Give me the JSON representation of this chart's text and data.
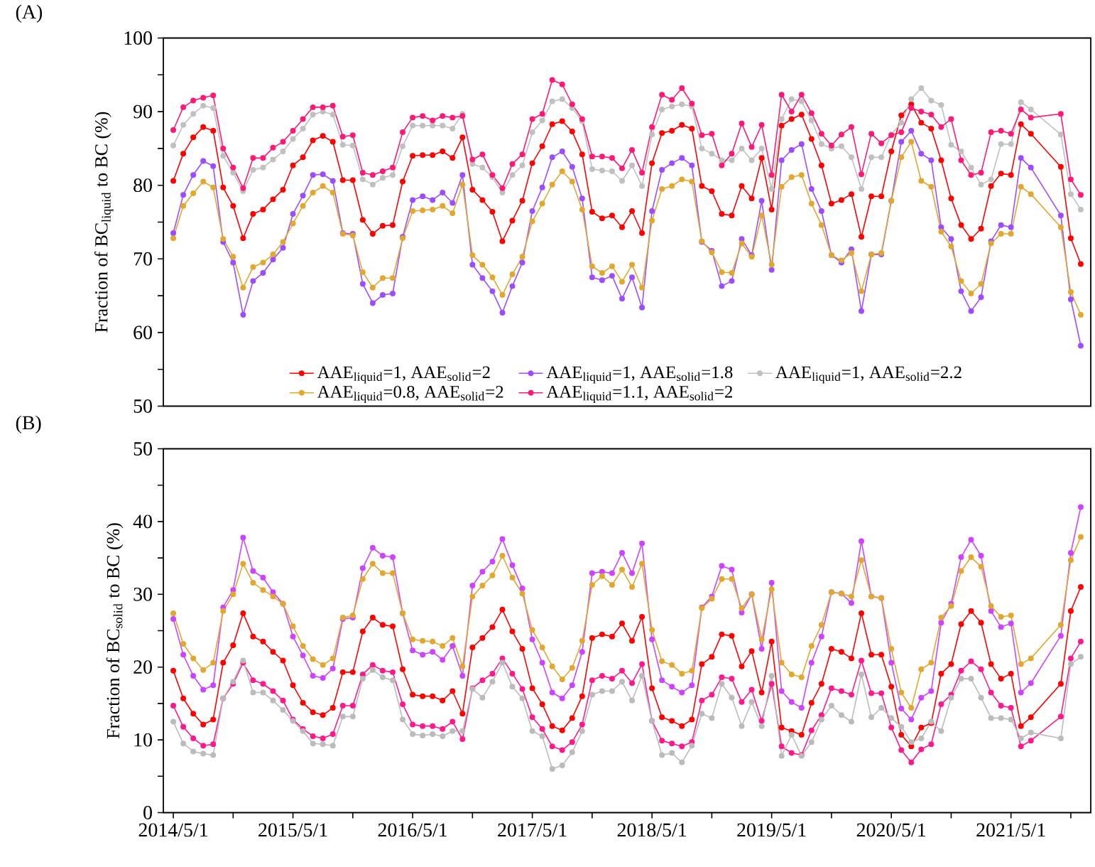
{
  "chart_data": [
    {
      "type": "line",
      "title": "(A)",
      "ylabel": "Fraction of BC$_{liquid}$ to BC (%)",
      "marker": "circle",
      "line_style": "solid",
      "legend": "bottom",
      "tick_labels": "y",
      "xlim": [
        "2014-04-01",
        "2022-01-01"
      ],
      "ylim": [
        50,
        100
      ],
      "yticks": [
        50,
        {
          "value": 55,
          "label": null
        },
        60,
        {
          "value": 65,
          "label": null
        },
        70,
        {
          "value": 75,
          "label": null
        },
        80,
        {
          "value": 85,
          "label": null
        },
        90,
        {
          "value": 95,
          "label": null
        },
        100
      ],
      "x": [
        "2014-05",
        "2014-06",
        "2014-07",
        "2014-08",
        "2014-09",
        "2014-10",
        "2014-11",
        "2014-12",
        "2015-01",
        "2015-02",
        "2015-03",
        "2015-04",
        "2015-05",
        "2015-06",
        "2015-07",
        "2015-08",
        "2015-09",
        "2015-10",
        "2015-11",
        "2015-12",
        "2016-01",
        "2016-02",
        "2016-03",
        "2016-04",
        "2016-05",
        "2016-06",
        "2016-07",
        "2016-08",
        "2016-09",
        "2016-10",
        "2016-11",
        "2016-12",
        "2017-01",
        "2017-02",
        "2017-03",
        "2017-04",
        "2017-05",
        "2017-06",
        "2017-07",
        "2017-08",
        "2017-09",
        "2017-10",
        "2017-11",
        "2017-12",
        "2018-01",
        "2018-02",
        "2018-03",
        "2018-04",
        "2018-05",
        "2018-06",
        "2018-07",
        "2018-08",
        "2018-09",
        "2018-10",
        "2018-11",
        "2018-12",
        "2019-01",
        "2019-02",
        "2019-03",
        "2019-04",
        "2019-05",
        "2019-06",
        "2019-07",
        "2019-08",
        "2019-09",
        "2019-10",
        "2019-11",
        "2019-12",
        "2020-01",
        "2020-02",
        "2020-03",
        "2020-04",
        "2020-05",
        "2020-06",
        "2020-07",
        "2020-08",
        "2020-09",
        "2020-10",
        "2020-11",
        "2020-12",
        "2021-01",
        "2021-02",
        "2021-03",
        "2021-04",
        "2021-05",
        "2021-06",
        "2021-07",
        "2021-10",
        "2021-11",
        "2021-12"
      ],
      "series": [
        {
          "name": "AAE$_{liquid}$=1, AAE$_{solid}$=2",
          "color": "#ff0000",
          "values": [
            80.6,
            84.3,
            86.5,
            87.9,
            87.4,
            79.7,
            77.2,
            72.8,
            76.1,
            76.7,
            78.1,
            79.4,
            82.7,
            83.8,
            86.1,
            86.7,
            85.9,
            80.7,
            80.7,
            75.3,
            73.4,
            74.5,
            74.6,
            80.5,
            84.0,
            84.1,
            84.1,
            84.6,
            83.7,
            86.5,
            79.4,
            78.0,
            76.4,
            72.4,
            75.2,
            77.9,
            83.0,
            85.3,
            88.3,
            88.7,
            87.3,
            84.2,
            76.4,
            75.5,
            75.9,
            74.3,
            76.5,
            73.5,
            83.0,
            87.1,
            87.4,
            88.2,
            87.7,
            79.9,
            79.2,
            76.1,
            75.9,
            79.9,
            78.2,
            83.7,
            76.7,
            88.1,
            89.0,
            89.6,
            86.3,
            82.7,
            77.5,
            78.0,
            78.8,
            73.0,
            78.5,
            78.5,
            84.6,
            89.5,
            91.0,
            88.5,
            87.7,
            83.4,
            78.2,
            74.6,
            72.7,
            74.1,
            79.9,
            81.6,
            81.4,
            88.3,
            87.0,
            82.5,
            72.8,
            69.3
          ]
        },
        {
          "name": "AAE$_{liquid}$=1, AAE$_{solid}$=1.8",
          "color": "#9b4dff",
          "values": [
            73.5,
            78.7,
            81.4,
            83.3,
            82.6,
            72.3,
            69.5,
            62.4,
            67.0,
            68.1,
            69.9,
            71.5,
            76.1,
            78.6,
            81.4,
            81.5,
            80.6,
            73.5,
            73.4,
            66.6,
            64.0,
            65.1,
            65.3,
            73.0,
            78.0,
            78.5,
            78.0,
            79.0,
            77.6,
            81.4,
            69.2,
            67.4,
            65.6,
            62.7,
            66.3,
            69.5,
            76.5,
            79.7,
            83.8,
            84.6,
            82.5,
            78.2,
            67.5,
            67.1,
            67.7,
            64.6,
            67.5,
            63.4,
            76.5,
            82.1,
            83.0,
            83.7,
            82.7,
            72.3,
            71.1,
            66.3,
            67.0,
            72.7,
            70.5,
            77.9,
            68.5,
            83.4,
            84.8,
            85.6,
            79.5,
            76.5,
            70.5,
            69.5,
            71.3,
            62.9,
            70.6,
            70.6,
            77.9,
            85.9,
            87.4,
            84.3,
            83.4,
            74.3,
            72.7,
            65.6,
            62.9,
            64.8,
            72.4,
            74.6,
            74.3,
            83.7,
            82.4,
            75.9,
            64.5,
            58.2
          ]
        },
        {
          "name": "AAE$_{liquid}$=1, AAE$_{solid}$=2.2",
          "color": "#c0c0c0",
          "values": [
            85.4,
            88.2,
            89.7,
            90.8,
            90.5,
            84.0,
            81.7,
            79.2,
            82.1,
            82.4,
            83.5,
            84.6,
            86.3,
            87.7,
            89.6,
            90.0,
            89.6,
            85.5,
            85.4,
            80.8,
            80.1,
            81.0,
            81.4,
            85.3,
            88.1,
            88.1,
            88.1,
            88.1,
            87.7,
            89.7,
            82.9,
            82.4,
            81.1,
            79.0,
            81.4,
            82.7,
            87.2,
            88.8,
            91.4,
            91.7,
            90.5,
            88.7,
            82.2,
            82.0,
            81.9,
            80.6,
            82.7,
            79.9,
            86.9,
            90.3,
            90.7,
            91.0,
            90.7,
            85.0,
            84.3,
            83.4,
            83.4,
            85.0,
            83.4,
            85.0,
            79.5,
            89.0,
            91.7,
            91.4,
            88.8,
            85.6,
            85.0,
            85.3,
            83.8,
            79.5,
            83.8,
            83.8,
            86.9,
            88.5,
            91.7,
            93.2,
            91.5,
            90.9,
            85.5,
            84.6,
            82.4,
            80.1,
            80.8,
            85.6,
            85.6,
            91.3,
            90.3,
            86.9,
            78.8,
            76.7
          ]
        },
        {
          "name": "AAE$_{liquid}$=0.8, AAE$_{solid}$=2",
          "color": "#e0a832",
          "values": [
            72.8,
            77.2,
            78.9,
            80.5,
            79.7,
            72.7,
            70.3,
            66.1,
            68.9,
            69.5,
            70.6,
            72.3,
            74.8,
            77.2,
            79.0,
            79.9,
            79.0,
            73.4,
            73.2,
            68.2,
            66.1,
            67.4,
            67.4,
            72.8,
            76.5,
            76.6,
            76.7,
            77.2,
            76.2,
            80.1,
            70.5,
            69.2,
            67.5,
            65.1,
            67.9,
            70.3,
            75.1,
            77.5,
            80.1,
            81.9,
            80.5,
            76.7,
            69.0,
            68.1,
            69.0,
            66.9,
            69.2,
            66.1,
            75.2,
            79.5,
            79.9,
            80.8,
            80.5,
            72.4,
            70.9,
            68.2,
            68.1,
            72.1,
            70.3,
            75.9,
            69.2,
            79.8,
            81.1,
            81.4,
            77.5,
            74.6,
            70.5,
            69.8,
            70.8,
            65.6,
            70.6,
            70.8,
            77.9,
            83.8,
            85.9,
            80.6,
            79.8,
            73.7,
            71.7,
            67.0,
            65.3,
            66.6,
            72.1,
            73.4,
            73.4,
            79.8,
            78.8,
            74.3,
            65.5,
            62.4
          ]
        },
        {
          "name": "AAE$_{liquid}$=1.1, AAE$_{solid}$=2",
          "color": "#ff1a75",
          "values": [
            87.5,
            90.6,
            91.5,
            91.9,
            92.2,
            85.0,
            82.4,
            79.6,
            83.7,
            83.7,
            85.1,
            85.9,
            87.4,
            89.0,
            90.6,
            90.6,
            90.8,
            86.6,
            86.8,
            81.7,
            81.4,
            81.9,
            82.4,
            87.2,
            89.2,
            89.4,
            88.8,
            89.4,
            89.2,
            89.4,
            83.5,
            84.2,
            81.4,
            79.6,
            82.9,
            84.2,
            89.0,
            89.7,
            94.3,
            93.7,
            91.0,
            89.0,
            83.9,
            83.9,
            83.7,
            82.3,
            84.8,
            81.7,
            87.9,
            92.3,
            91.6,
            93.2,
            91.1,
            86.8,
            87.0,
            82.7,
            84.3,
            88.4,
            85.2,
            88.2,
            81.4,
            92.3,
            90.0,
            92.3,
            89.8,
            87.0,
            85.4,
            86.9,
            87.9,
            81.5,
            87.0,
            85.7,
            86.8,
            87.2,
            90.5,
            90.0,
            89.6,
            87.9,
            89.0,
            83.4,
            81.4,
            81.7,
            87.2,
            87.4,
            87.0,
            90.3,
            89.2,
            89.7,
            80.8,
            78.7
          ]
        }
      ]
    },
    {
      "type": "line",
      "title": "(B)",
      "ylabel": "Fraction of BC$_{solid}$ to BC (%)",
      "marker": "circle",
      "line_style": "solid",
      "xlim": [
        "2014-04-01",
        "2022-01-01"
      ],
      "ylim": [
        0,
        50
      ],
      "xticks": [
        {
          "value": "2014-05-01",
          "label": "2014/5/1"
        },
        {
          "value": "2014-11-01",
          "label": null
        },
        {
          "value": "2015-05-01",
          "label": "2015/5/1"
        },
        {
          "value": "2015-11-01",
          "label": null
        },
        {
          "value": "2016-05-01",
          "label": "2016/5/1"
        },
        {
          "value": "2016-11-01",
          "label": null
        },
        {
          "value": "2017-05-01",
          "label": "2017/5/1"
        },
        {
          "value": "2017-11-01",
          "label": null
        },
        {
          "value": "2018-05-01",
          "label": "2018/5/1"
        },
        {
          "value": "2018-11-01",
          "label": null
        },
        {
          "value": "2019-05-01",
          "label": "2019/5/1"
        },
        {
          "value": "2019-11-01",
          "label": null
        },
        {
          "value": "2020-05-01",
          "label": "2020/5/1"
        },
        {
          "value": "2020-11-01",
          "label": null
        },
        {
          "value": "2021-05-01",
          "label": "2021/5/1"
        },
        {
          "value": "2021-11-01",
          "label": null
        }
      ],
      "yticks": [
        0,
        {
          "value": 5,
          "label": null
        },
        10,
        {
          "value": 15,
          "label": null
        },
        20,
        {
          "value": 25,
          "label": null
        },
        30,
        {
          "value": 35,
          "label": null
        },
        40,
        {
          "value": 45,
          "label": null
        },
        50
      ],
      "x": [
        "2014-05",
        "2014-06",
        "2014-07",
        "2014-08",
        "2014-09",
        "2014-10",
        "2014-11",
        "2014-12",
        "2015-01",
        "2015-02",
        "2015-03",
        "2015-04",
        "2015-05",
        "2015-06",
        "2015-07",
        "2015-08",
        "2015-09",
        "2015-10",
        "2015-11",
        "2015-12",
        "2016-01",
        "2016-02",
        "2016-03",
        "2016-04",
        "2016-05",
        "2016-06",
        "2016-07",
        "2016-08",
        "2016-09",
        "2016-10",
        "2016-11",
        "2016-12",
        "2017-01",
        "2017-02",
        "2017-03",
        "2017-04",
        "2017-05",
        "2017-06",
        "2017-07",
        "2017-08",
        "2017-09",
        "2017-10",
        "2017-11",
        "2017-12",
        "2018-01",
        "2018-02",
        "2018-03",
        "2018-04",
        "2018-05",
        "2018-06",
        "2018-07",
        "2018-08",
        "2018-09",
        "2018-10",
        "2018-11",
        "2018-12",
        "2019-01",
        "2019-02",
        "2019-03",
        "2019-04",
        "2019-05",
        "2019-06",
        "2019-07",
        "2019-08",
        "2019-09",
        "2019-10",
        "2019-11",
        "2019-12",
        "2020-01",
        "2020-02",
        "2020-03",
        "2020-04",
        "2020-05",
        "2020-06",
        "2020-07",
        "2020-08",
        "2020-09",
        "2020-10",
        "2020-11",
        "2020-12",
        "2021-01",
        "2021-02",
        "2021-03",
        "2021-04",
        "2021-05",
        "2021-06",
        "2021-07",
        "2021-10",
        "2021-11",
        "2021-12"
      ],
      "series": [
        {
          "color": "#cc44ff",
          "values": [
            26.6,
            21.7,
            18.8,
            16.9,
            17.5,
            28.2,
            30.6,
            37.8,
            33.2,
            32.3,
            30.3,
            28.7,
            24.2,
            21.6,
            18.8,
            18.5,
            19.8,
            26.6,
            26.8,
            33.6,
            36.4,
            35.3,
            35.1,
            27.4,
            22.3,
            21.7,
            22.1,
            21.0,
            22.9,
            18.8,
            31.2,
            33.1,
            34.5,
            37.6,
            34.0,
            30.8,
            23.8,
            20.6,
            16.5,
            15.7,
            17.5,
            22.1,
            32.9,
            33.1,
            32.9,
            35.7,
            32.9,
            37.0,
            23.8,
            18.2,
            17.3,
            16.5,
            17.5,
            28.2,
            29.7,
            33.9,
            33.4,
            27.5,
            30.0,
            22.5,
            31.6,
            16.7,
            15.2,
            14.4,
            20.6,
            24.2,
            30.3,
            30.1,
            28.8,
            37.3,
            29.7,
            29.5,
            20.6,
            14.3,
            12.8,
            15.8,
            16.7,
            26.1,
            28.7,
            35.1,
            37.5,
            35.3,
            27.7,
            25.5,
            26.0,
            16.5,
            17.8,
            24.3,
            35.7,
            42.0
          ]
        },
        {
          "color": "#e0a832",
          "values": [
            27.4,
            23.2,
            21.2,
            19.6,
            20.6,
            27.7,
            30.0,
            34.2,
            31.6,
            30.6,
            29.7,
            28.7,
            25.6,
            22.9,
            21.1,
            20.3,
            21.2,
            26.8,
            27.1,
            32.1,
            34.2,
            32.9,
            32.9,
            27.4,
            23.8,
            23.6,
            23.5,
            22.9,
            24.0,
            20.1,
            29.7,
            31.2,
            32.6,
            35.3,
            32.3,
            30.1,
            25.1,
            22.7,
            20.1,
            18.3,
            19.9,
            23.6,
            31.3,
            32.5,
            31.3,
            33.4,
            31.0,
            34.2,
            25.1,
            20.8,
            20.3,
            19.1,
            19.5,
            28.1,
            29.4,
            32.1,
            32.1,
            28.1,
            30.0,
            23.8,
            30.7,
            20.6,
            19.0,
            18.6,
            22.9,
            25.8,
            30.3,
            30.1,
            29.7,
            34.7,
            29.7,
            29.5,
            22.5,
            16.5,
            14.4,
            19.7,
            20.6,
            26.8,
            28.4,
            33.2,
            35.1,
            33.8,
            28.4,
            26.9,
            27.1,
            20.4,
            21.2,
            25.8,
            34.7,
            37.9
          ]
        },
        {
          "color": "#ff0000",
          "values": [
            19.5,
            15.7,
            13.6,
            12.1,
            12.8,
            20.6,
            23.0,
            27.4,
            24.2,
            23.5,
            22.1,
            20.9,
            17.5,
            15.1,
            13.8,
            13.4,
            14.4,
            19.3,
            19.3,
            24.9,
            26.8,
            25.8,
            25.6,
            19.7,
            16.2,
            16.0,
            16.0,
            15.4,
            16.7,
            13.6,
            22.7,
            24.0,
            25.5,
            27.9,
            24.9,
            22.5,
            17.1,
            14.9,
            11.9,
            11.3,
            13.0,
            16.0,
            24.0,
            24.5,
            24.2,
            26.0,
            23.6,
            26.9,
            17.1,
            13.1,
            12.6,
            11.9,
            12.8,
            20.4,
            21.4,
            24.5,
            24.3,
            20.1,
            22.2,
            16.5,
            23.5,
            11.7,
            11.2,
            10.7,
            15.1,
            17.7,
            22.5,
            22.1,
            21.2,
            27.4,
            21.7,
            21.7,
            17.3,
            10.7,
            9.1,
            11.7,
            12.3,
            19.1,
            20.4,
            25.9,
            27.7,
            26.1,
            20.4,
            18.4,
            19.1,
            11.9,
            13.1,
            17.7,
            27.7,
            31.0
          ]
        },
        {
          "color": "#ff1a8c",
          "values": [
            14.7,
            11.8,
            10.2,
            9.2,
            9.4,
            15.7,
            17.7,
            20.6,
            18.2,
            17.7,
            16.7,
            15.4,
            12.8,
            11.5,
            10.5,
            10.2,
            10.8,
            14.7,
            14.7,
            19.0,
            20.3,
            19.5,
            19.3,
            14.9,
            12.1,
            11.9,
            11.9,
            11.5,
            12.5,
            10.1,
            17.1,
            18.2,
            19.1,
            21.2,
            19.1,
            17.0,
            13.1,
            11.5,
            9.1,
            8.6,
            9.7,
            12.1,
            18.2,
            18.8,
            18.4,
            19.5,
            17.8,
            20.4,
            12.6,
            9.9,
            9.5,
            9.1,
            9.7,
            15.4,
            16.2,
            18.6,
            18.4,
            15.2,
            16.9,
            12.6,
            17.7,
            9.1,
            8.2,
            7.9,
            11.3,
            13.4,
            17.1,
            16.7,
            16.2,
            20.9,
            16.4,
            16.4,
            11.7,
            8.6,
            6.9,
            8.7,
            9.4,
            14.9,
            16.2,
            19.5,
            20.8,
            19.7,
            16.5,
            14.7,
            14.4,
            9.1,
            9.9,
            13.2,
            21.2,
            23.5
          ]
        },
        {
          "color": "#bbbbbb",
          "values": [
            12.5,
            9.5,
            8.4,
            8.1,
            7.9,
            15.7,
            18.0,
            20.9,
            16.5,
            16.5,
            15.4,
            14.1,
            12.6,
            11.2,
            9.5,
            9.4,
            9.2,
            13.2,
            13.2,
            18.4,
            19.6,
            18.6,
            18.2,
            12.8,
            10.8,
            10.6,
            10.8,
            10.5,
            11.2,
            11.2,
            17.0,
            15.8,
            18.0,
            20.6,
            17.3,
            15.7,
            11.2,
            10.5,
            6.0,
            6.5,
            8.3,
            11.2,
            16.2,
            16.7,
            16.7,
            18.0,
            15.4,
            18.8,
            12.6,
            7.9,
            8.2,
            6.9,
            9.2,
            13.6,
            13.0,
            17.7,
            15.8,
            11.9,
            15.2,
            11.9,
            18.8,
            7.8,
            10.7,
            7.8,
            9.7,
            12.8,
            14.7,
            13.4,
            12.5,
            19.0,
            13.1,
            14.4,
            13.0,
            11.8,
            9.7,
            10.2,
            12.5,
            11.2,
            15.8,
            18.4,
            18.4,
            15.8,
            13.0,
            13.0,
            12.8,
            10.2,
            11.0,
            10.2,
            20.4,
            21.4
          ]
        }
      ]
    }
  ]
}
